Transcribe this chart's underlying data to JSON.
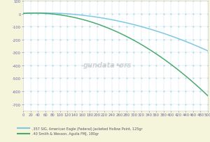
{
  "background_color": "#f5f5dc",
  "plot_background": "#ffffff",
  "grid_color": "#a8d8ea",
  "grid_dot_color": "#90c8e0",
  "xlim": [
    0,
    500
  ],
  "ylim": [
    -750,
    100
  ],
  "xticks": [
    0,
    20,
    40,
    60,
    80,
    100,
    120,
    140,
    160,
    180,
    200,
    220,
    240,
    260,
    280,
    300,
    320,
    340,
    360,
    380,
    400,
    420,
    440,
    460,
    480,
    500
  ],
  "yticks": [
    100,
    0,
    -100,
    -200,
    -300,
    -400,
    -500,
    -600,
    -700
  ],
  "line1_color": "#7ec8e3",
  "line2_color": "#4aaa6e",
  "line1_label": ".357 SIG, American Eagle (Federal) Jacketed Hollow Point, 125gr",
  "line2_label": ".40 Smith & Wesson, Aguila FMJ, 180gr",
  "watermark": "gundata•ørs",
  "tick_color": "#6666aa",
  "tick_fontsize": 3.8,
  "legend_fontsize": 3.5
}
